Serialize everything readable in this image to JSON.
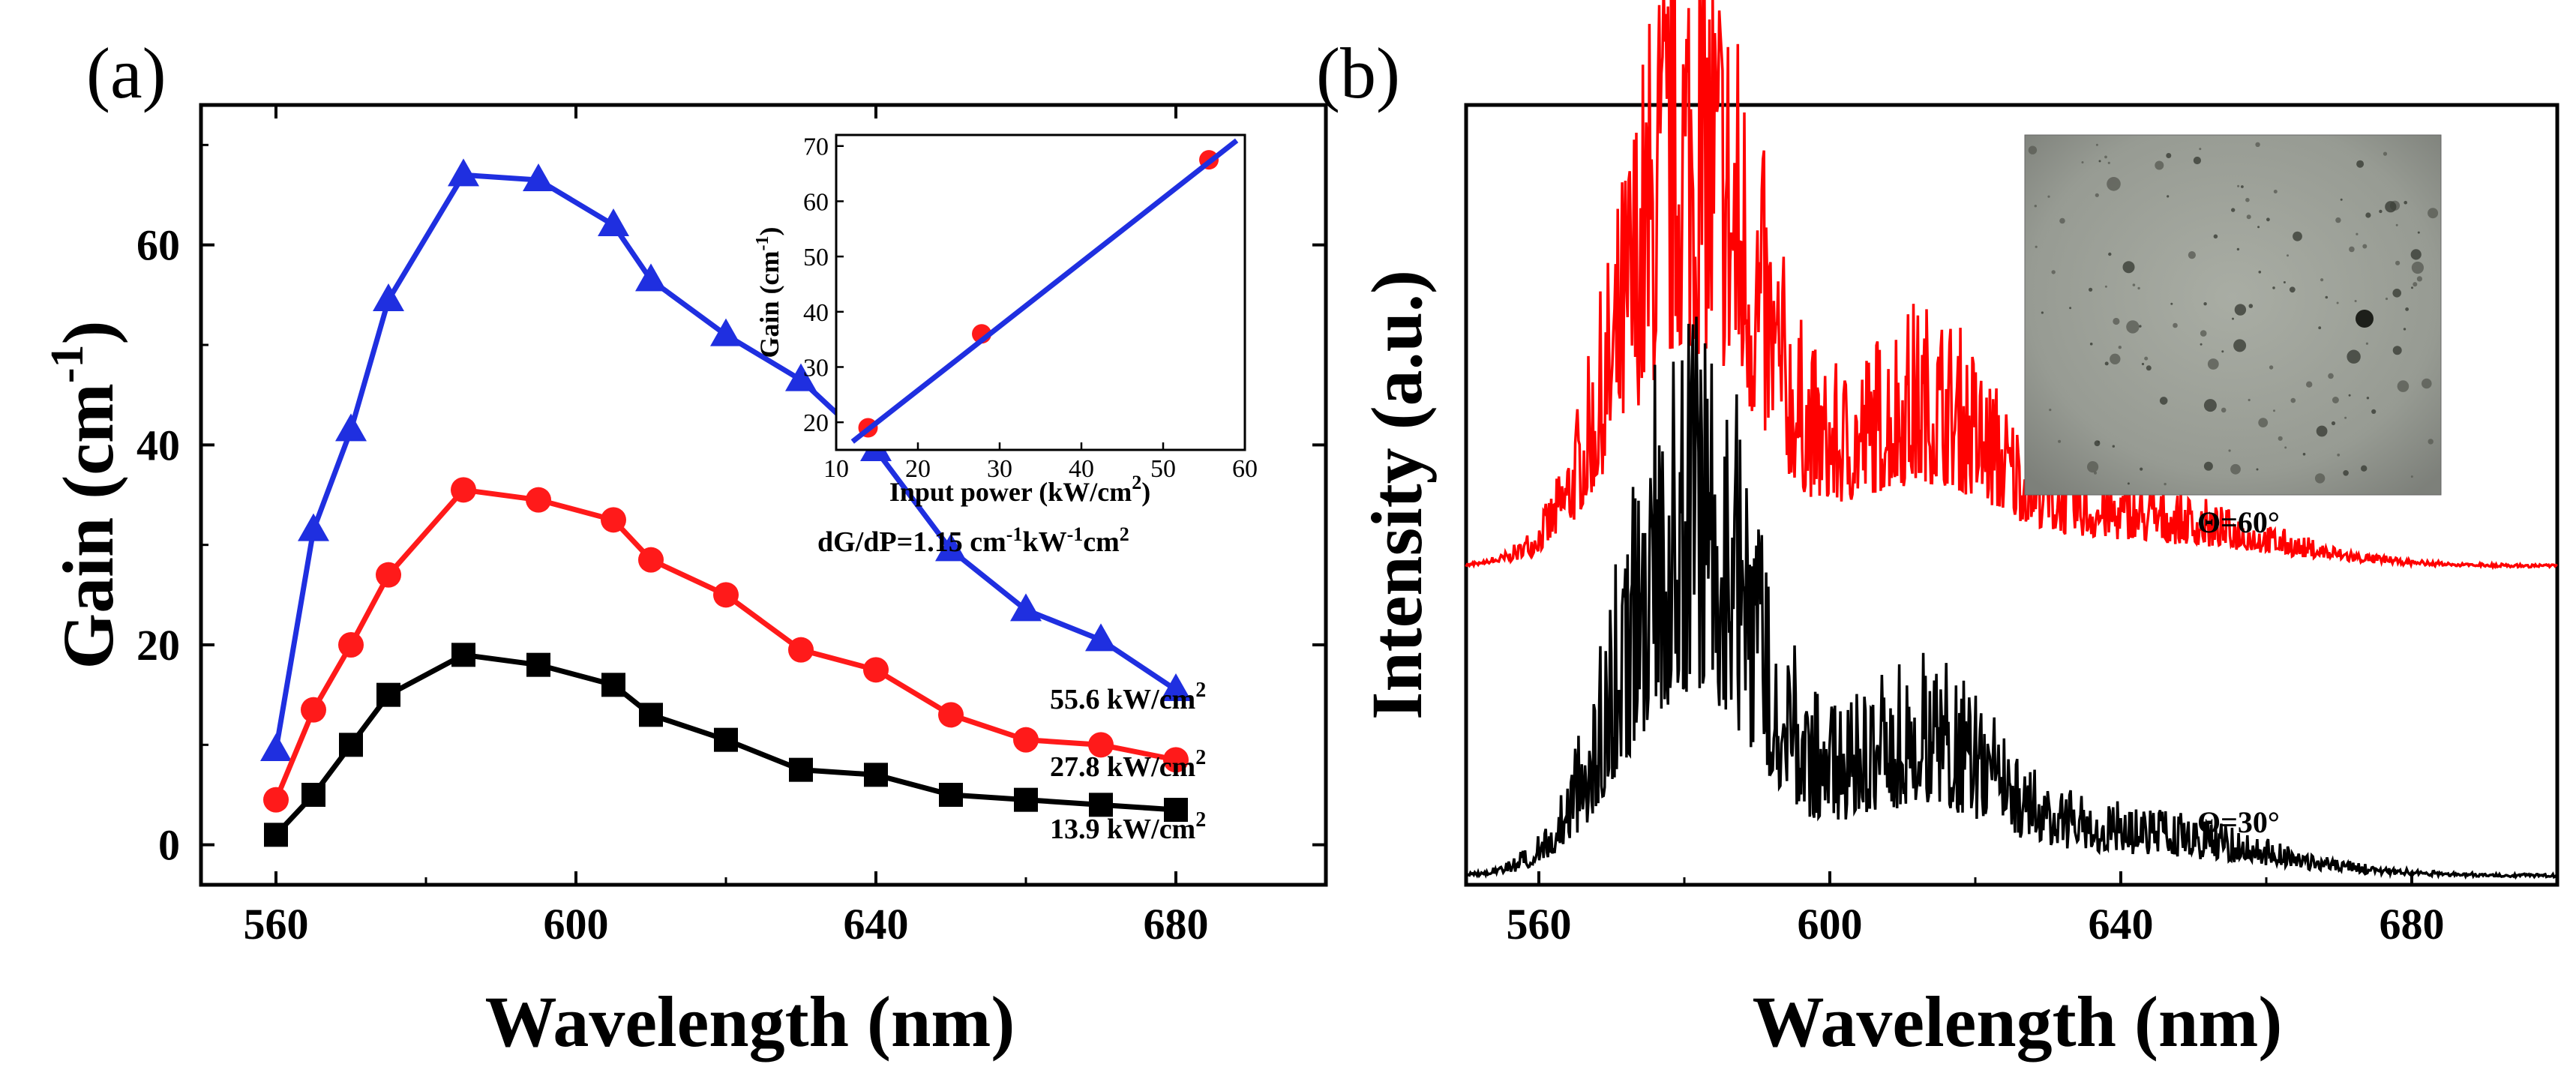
{
  "chart_data": [
    {
      "panel": "(a)",
      "type": "line",
      "xlabel": "Wavelength (nm)",
      "ylabel": "Gain (cm",
      "ylabel_sup": "-1",
      "ylabel_close": ")",
      "xlim": [
        550,
        700
      ],
      "ylim": [
        -4,
        74
      ],
      "xticks": [
        560,
        600,
        640,
        680
      ],
      "yticks": [
        0,
        20,
        40,
        60
      ],
      "series": [
        {
          "name": "55.6 kW/cm",
          "name_sup": "2",
          "color": "#1f2fe0",
          "marker": "triangle",
          "x": [
            560,
            565,
            570,
            575,
            585,
            595,
            605,
            610,
            620,
            630,
            640,
            650,
            660,
            670,
            680
          ],
          "y": [
            9.5,
            31.5,
            41.5,
            54.5,
            67,
            66.5,
            62,
            56.5,
            51,
            46.5,
            39.5,
            29.5,
            23.5,
            20.5,
            15.5
          ]
        },
        {
          "name": "27.8 kW/cm",
          "name_sup": "2",
          "color": "#ff1a1a",
          "marker": "circle",
          "x": [
            560,
            565,
            570,
            575,
            585,
            595,
            605,
            610,
            620,
            630,
            640,
            650,
            660,
            670,
            680
          ],
          "y": [
            4.5,
            13.5,
            20,
            27,
            35.5,
            34.5,
            32.5,
            28.5,
            25,
            19.5,
            17.5,
            13,
            10.5,
            10,
            8.5
          ]
        },
        {
          "name": "13.9 kW/cm",
          "name_sup": "2",
          "color": "#000000",
          "marker": "square",
          "x": [
            560,
            565,
            570,
            575,
            585,
            595,
            605,
            610,
            620,
            630,
            640,
            650,
            660,
            670,
            680
          ],
          "y": [
            1,
            5,
            10,
            15,
            19,
            18,
            16,
            13,
            10.5,
            7.5,
            7,
            5,
            4.5,
            4,
            3.5
          ]
        }
      ],
      "annotation": {
        "prefix": "dG/dP=1.15 cm",
        "sup1": "-1",
        "mid": "kW",
        "sup2": "-1",
        "suffix": "cm",
        "sup3": "2"
      },
      "inset": {
        "type": "scatter",
        "xlabel": "Input power (kW/cm",
        "xlabel_sup": "2",
        "xlabel_close": ")",
        "ylabel": "Gain (cm",
        "ylabel_sup": "-1",
        "ylabel_close": ")",
        "xlim": [
          10,
          60
        ],
        "ylim": [
          15,
          72
        ],
        "xticks": [
          10,
          20,
          30,
          40,
          50,
          60
        ],
        "yticks": [
          20,
          30,
          40,
          50,
          60,
          70
        ],
        "points": [
          {
            "x": 13.9,
            "y": 19
          },
          {
            "x": 27.8,
            "y": 36
          },
          {
            "x": 55.6,
            "y": 67.5
          }
        ],
        "fit": {
          "x": [
            12,
            59
          ],
          "y": [
            16.5,
            71
          ],
          "color": "#1f2fe0"
        },
        "point_color": "#ff1a1a"
      }
    },
    {
      "panel": "(b)",
      "type": "line",
      "xlabel": "Wavelength (nm)",
      "ylabel": "Intensity (a.u.)",
      "xlim": [
        550,
        700
      ],
      "xticks": [
        560,
        600,
        640,
        680
      ],
      "series": [
        {
          "name": "Θ=60°",
          "color": "#ff0000",
          "offset": 0.42
        },
        {
          "name": "Θ=30°",
          "color": "#000000",
          "offset": 0.0
        }
      ],
      "labels": {
        "theta60": "Θ=60°",
        "theta30": "Θ=30°"
      },
      "inset_image": "microscope-image"
    }
  ]
}
